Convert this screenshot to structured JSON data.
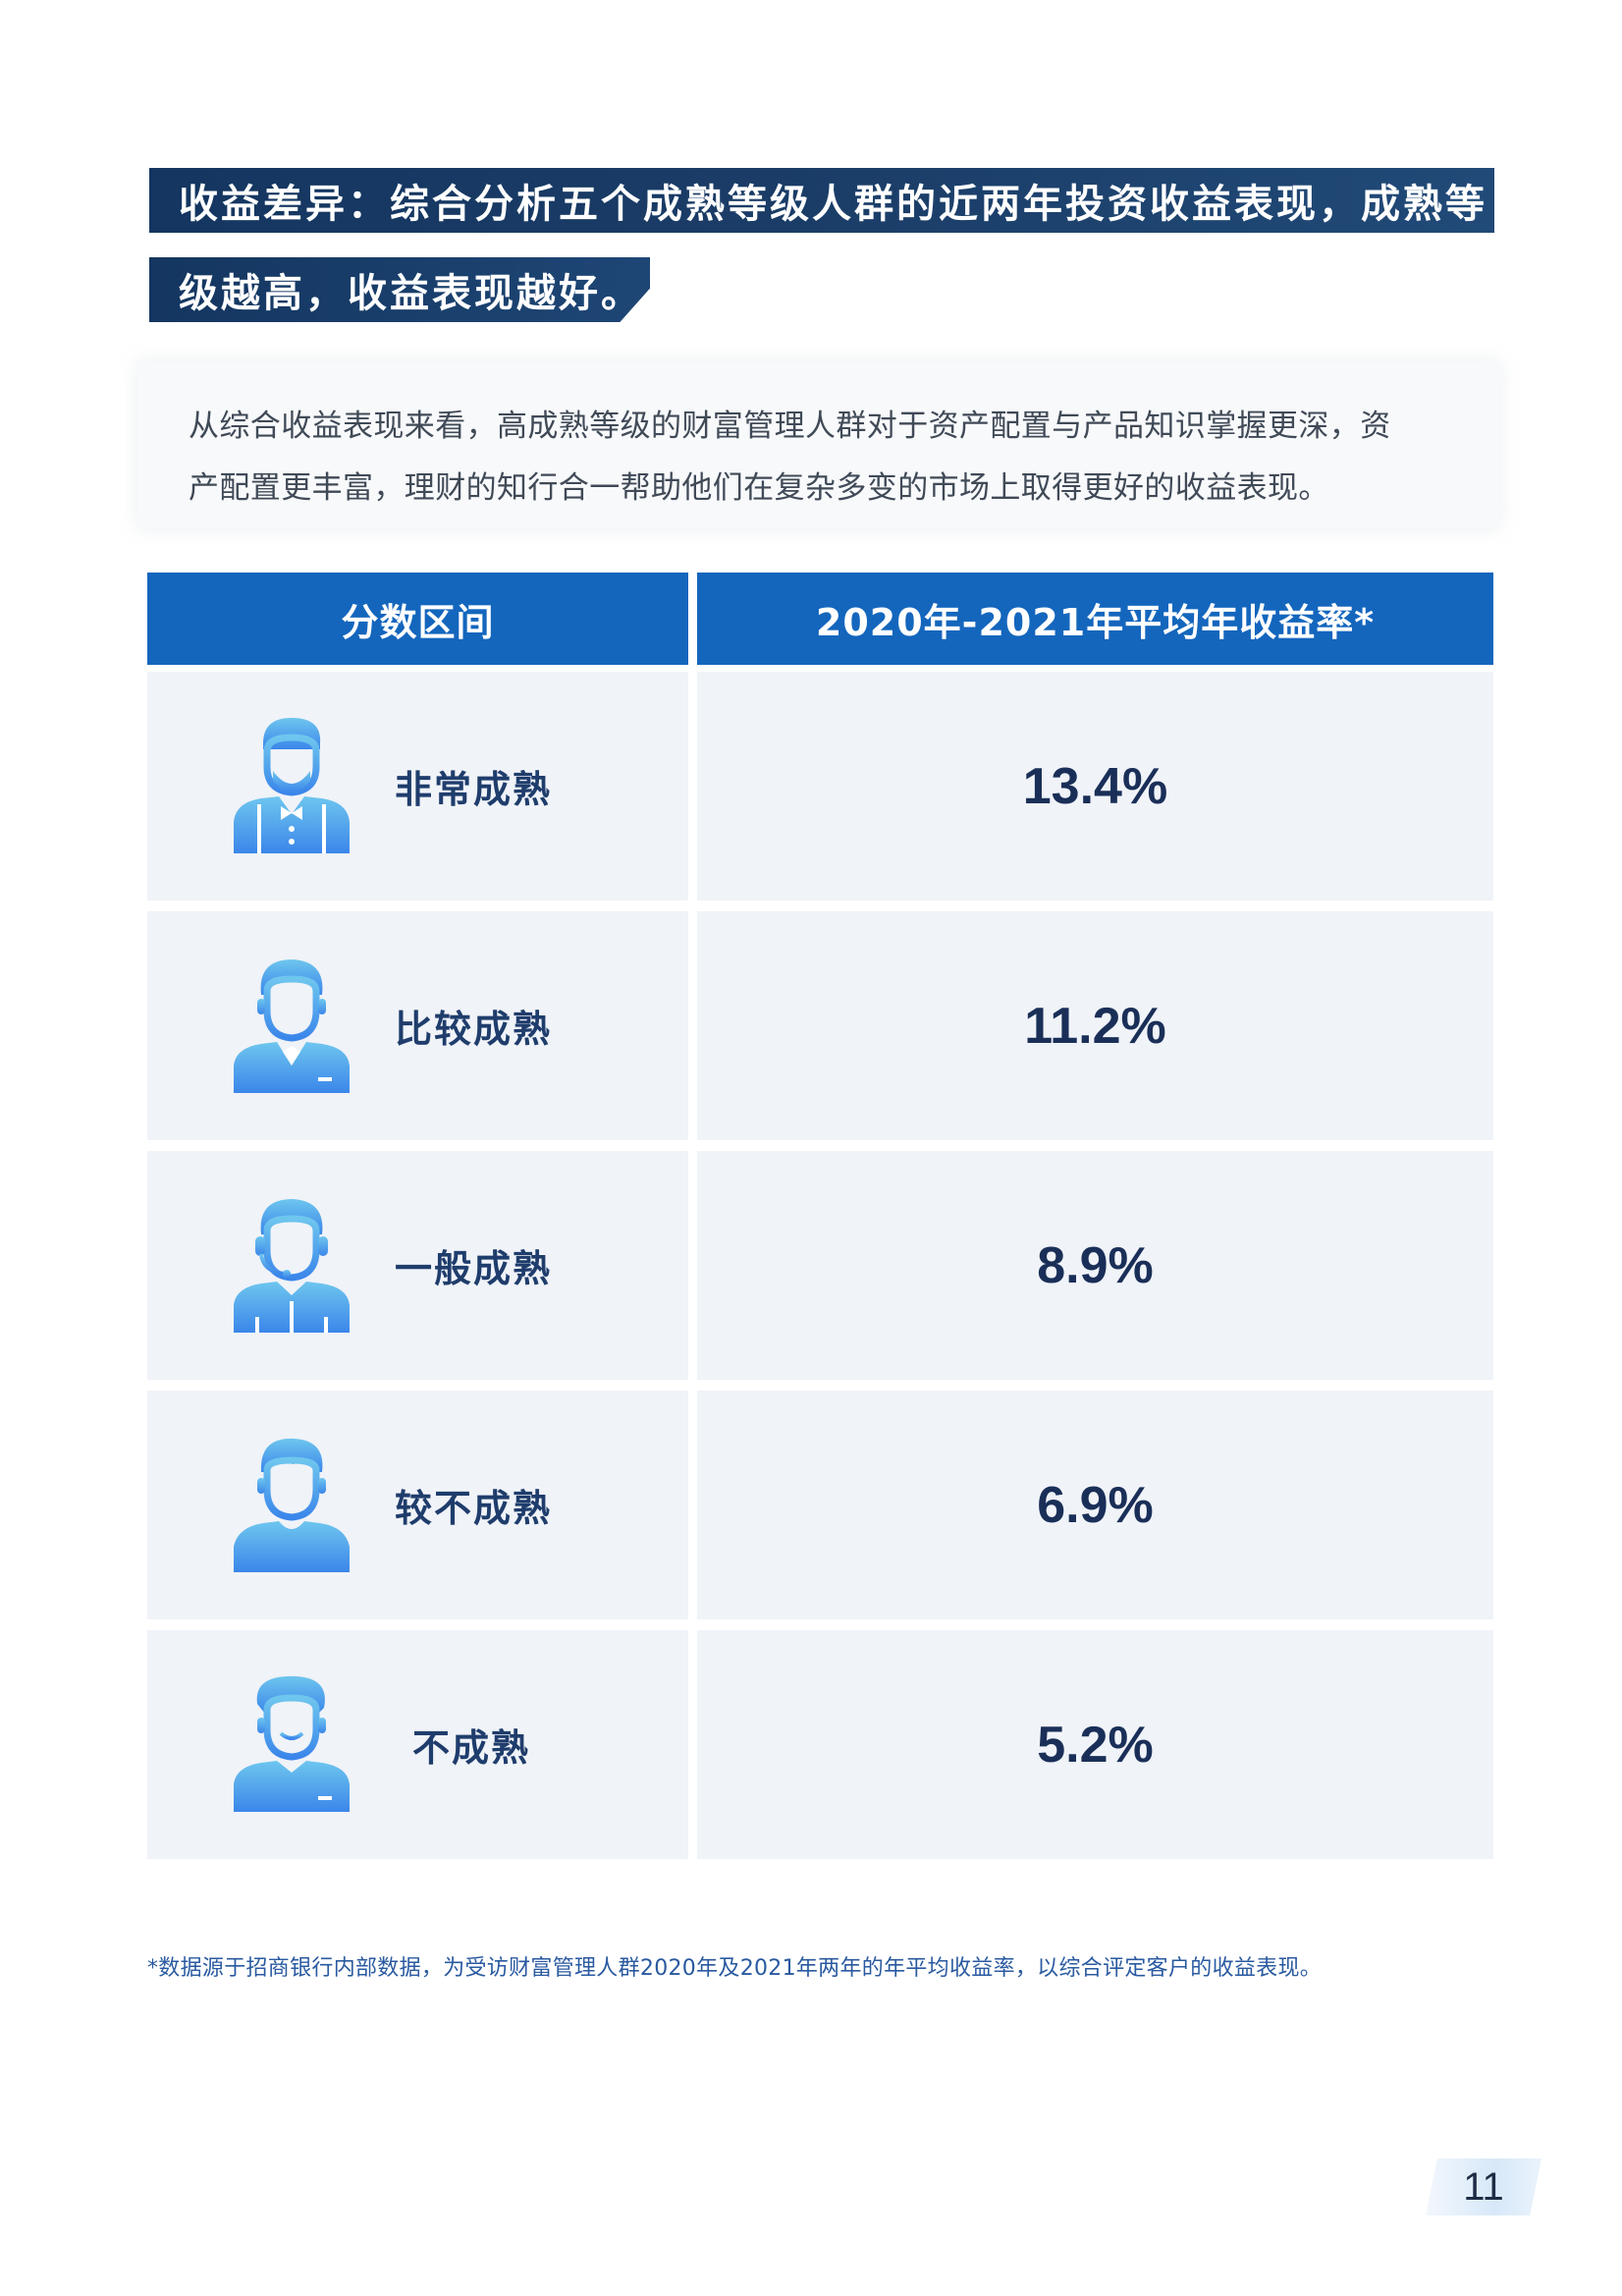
{
  "headline": {
    "line1": "收益差异：综合分析五个成熟等级人群的近两年投资收益表现，成熟等",
    "line2": "级越高，收益表现越好。"
  },
  "intro": {
    "line1": "从综合收益表现来看，高成熟等级的财富管理人群对于资产配置与产品知识掌握更深，资",
    "line2": "产配置更丰富，理财的知行合一帮助他们在复杂多变的市场上取得更好的收益表现。"
  },
  "table": {
    "headers": [
      "分数区间",
      "2020年-2021年平均年收益率*"
    ],
    "rows": [
      {
        "level": "非常成熟",
        "rate": "13.4%",
        "icon": "bowtie-person-icon"
      },
      {
        "level": "比较成熟",
        "rate": "11.2%",
        "icon": "suit-person-icon"
      },
      {
        "level": "一般成熟",
        "rate": "8.9%",
        "icon": "headset-person-icon"
      },
      {
        "level": "较不成熟",
        "rate": "6.9%",
        "icon": "young-person-icon"
      },
      {
        "level": "不成熟",
        "rate": "5.2%",
        "icon": "smiling-person-icon"
      }
    ]
  },
  "footnote": "*数据源于招商银行内部数据，为受访财富管理人群2020年及2021年两年的年平均收益率，以综合评定客户的收益表现。",
  "page_number": "11",
  "colors": {
    "banner": "#143660",
    "table_header": "#1466bd",
    "cell_bg": "#f0f3f8",
    "icon_top": "#6ec6ee",
    "icon_bottom": "#3b86ea"
  }
}
